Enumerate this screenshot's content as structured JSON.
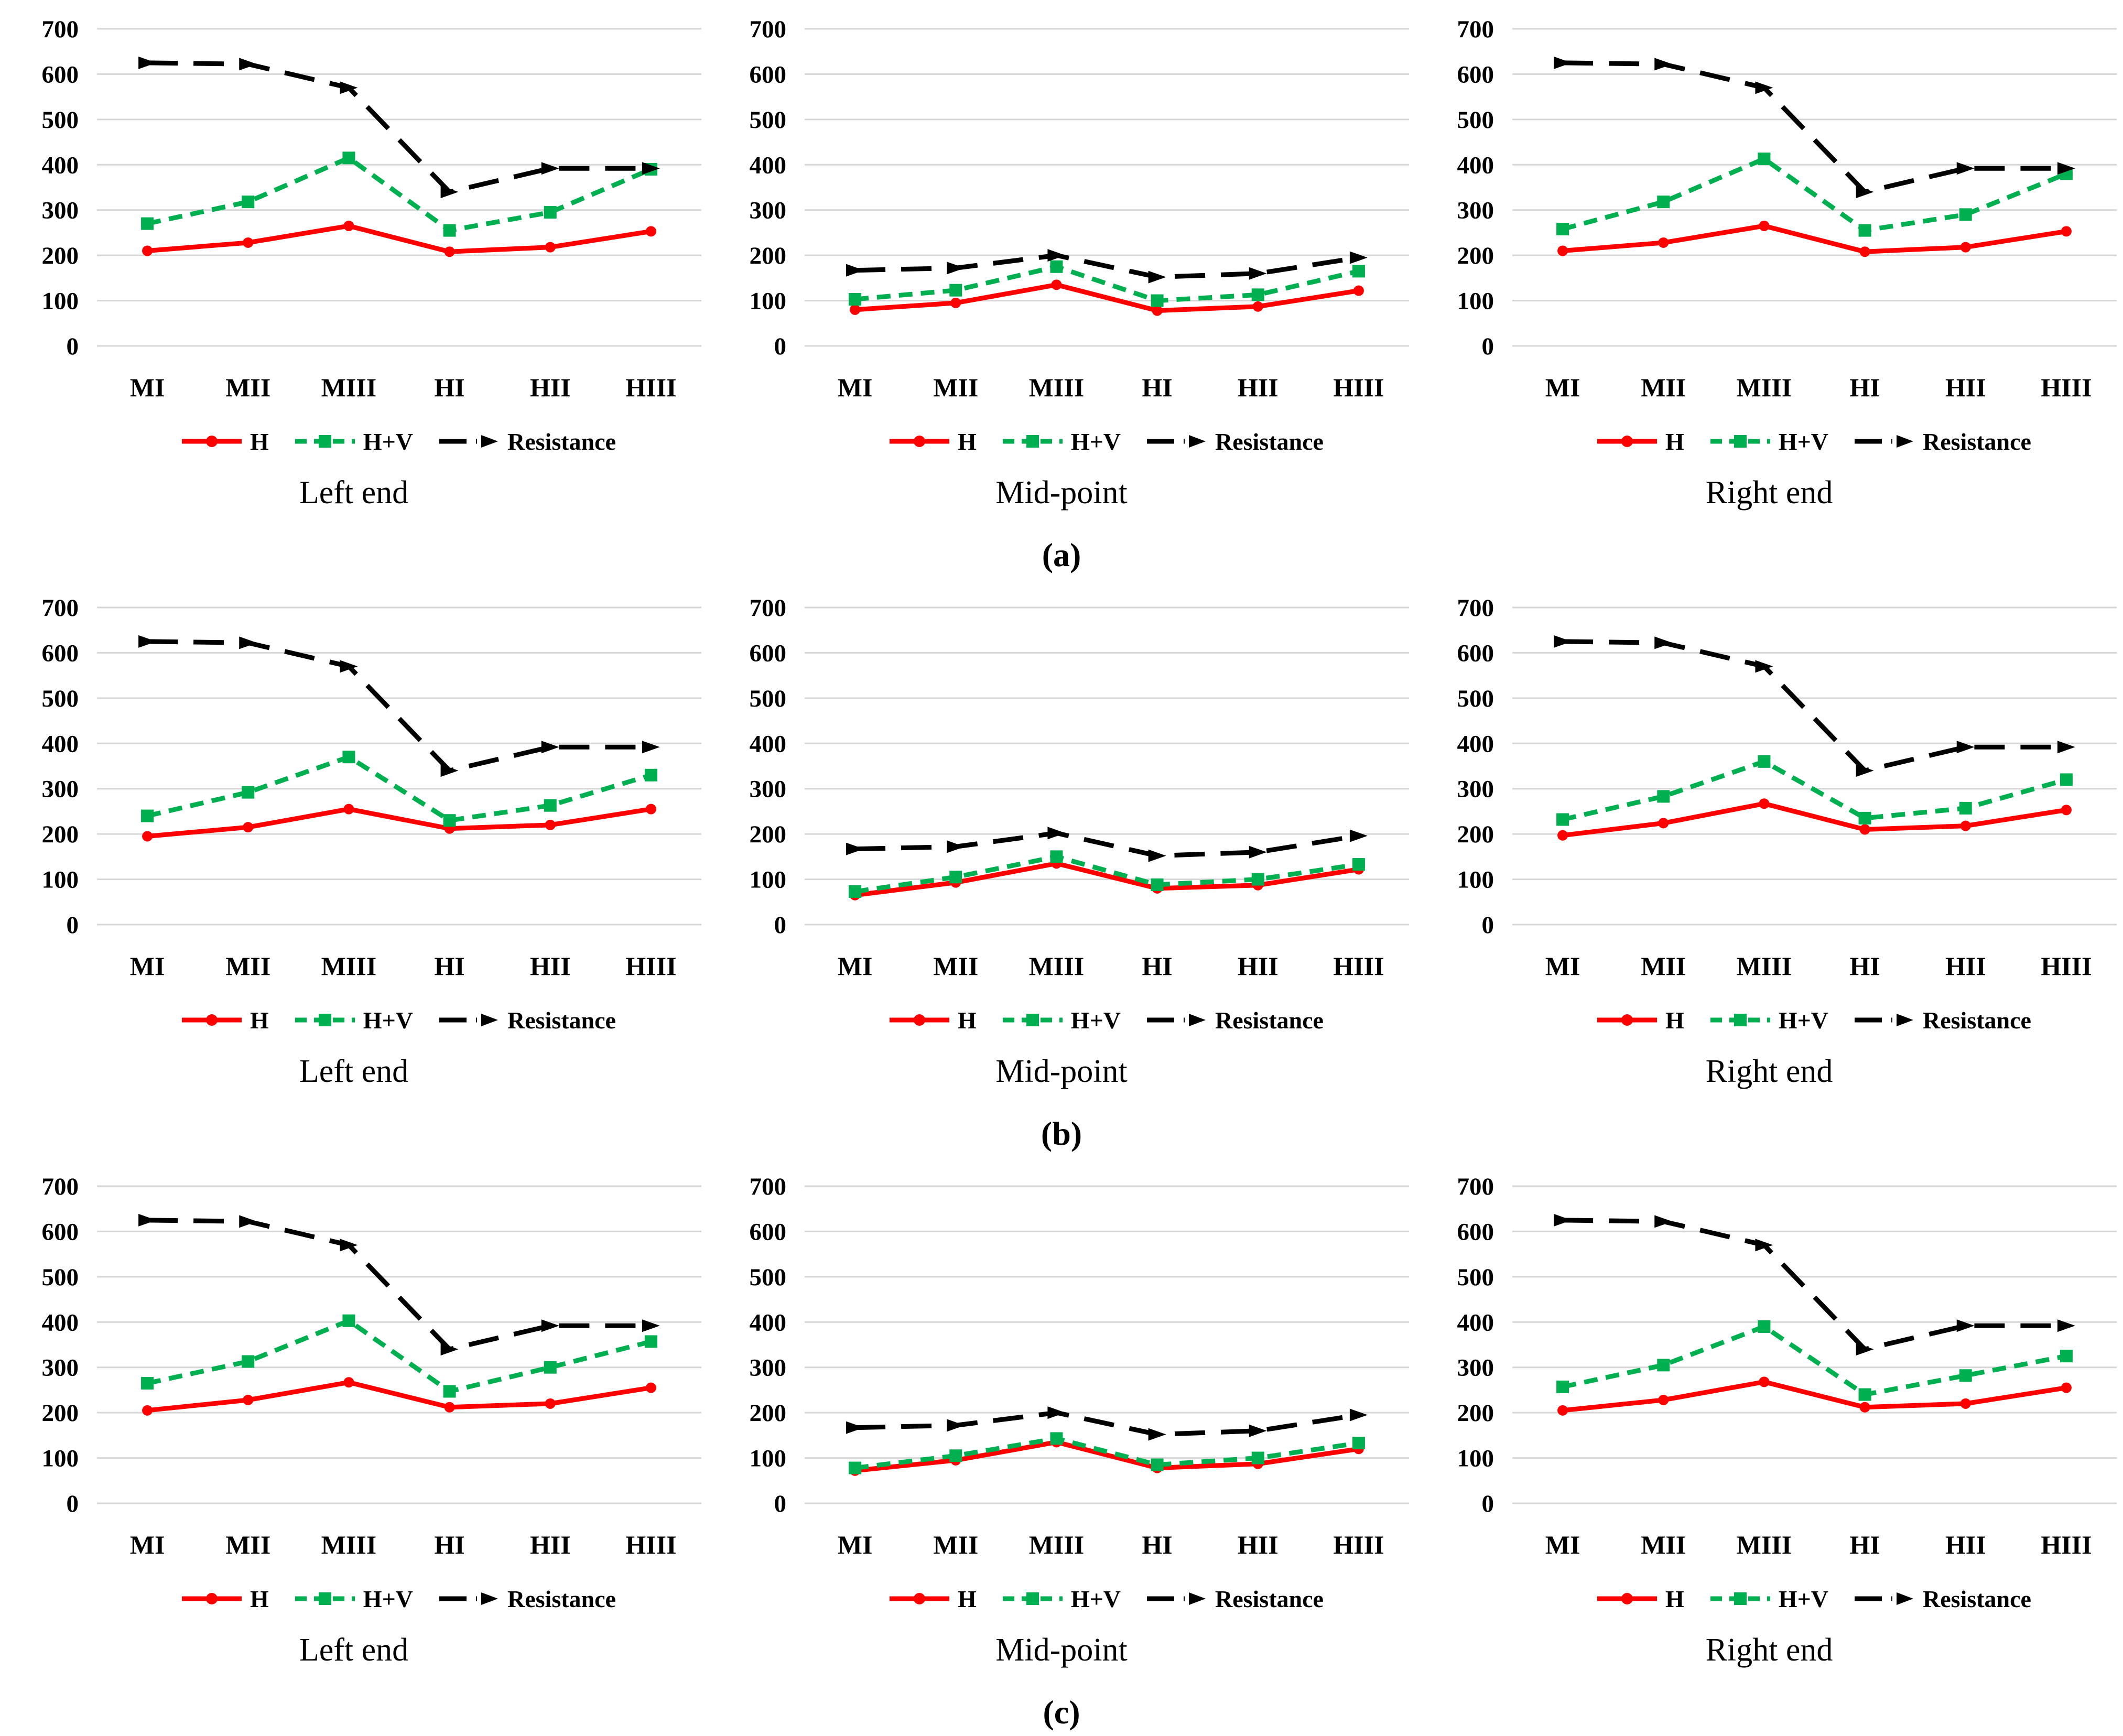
{
  "page": {
    "background": "#ffffff"
  },
  "chart_rows": [
    {
      "label": "(a)"
    },
    {
      "label": "(b)"
    },
    {
      "label": "(c)"
    }
  ],
  "chart_layout": {
    "ylim": [
      0,
      700
    ],
    "yticks": [
      0,
      100,
      200,
      300,
      400,
      500,
      600,
      700
    ],
    "grid": "horizontal",
    "gridline_color": "#d6d6d6",
    "legend_position": "bottom"
  },
  "chart_data": [
    {
      "type": "line",
      "panel": "(a)",
      "title": "Left end",
      "categories": [
        "MI",
        "MII",
        "MIII",
        "HI",
        "HII",
        "HIII"
      ],
      "ylim": [
        0,
        700
      ],
      "series": [
        {
          "name": "H",
          "color": "#ff0000",
          "line": "solid",
          "marker": "circle",
          "values": [
            210,
            228,
            265,
            208,
            218,
            253
          ]
        },
        {
          "name": "H+V",
          "color": "#00b050",
          "line": "dashed",
          "marker": "square",
          "values": [
            270,
            318,
            415,
            255,
            295,
            390
          ]
        },
        {
          "name": "Resistance",
          "color": "#000000",
          "line": "longdash",
          "marker": "triangle",
          "values": [
            625,
            622,
            570,
            340,
            392,
            392
          ]
        }
      ]
    },
    {
      "type": "line",
      "panel": "(a)",
      "title": "Mid-point",
      "categories": [
        "MI",
        "MII",
        "MIII",
        "HI",
        "HII",
        "HIII"
      ],
      "ylim": [
        0,
        700
      ],
      "series": [
        {
          "name": "H",
          "color": "#ff0000",
          "line": "solid",
          "marker": "circle",
          "values": [
            80,
            95,
            135,
            78,
            87,
            122
          ]
        },
        {
          "name": "H+V",
          "color": "#00b050",
          "line": "dashed",
          "marker": "square",
          "values": [
            103,
            123,
            175,
            100,
            113,
            165
          ]
        },
        {
          "name": "Resistance",
          "color": "#000000",
          "line": "longdash",
          "marker": "triangle",
          "values": [
            167,
            172,
            200,
            152,
            160,
            195
          ]
        }
      ]
    },
    {
      "type": "line",
      "panel": "(a)",
      "title": "Right end",
      "categories": [
        "MI",
        "MII",
        "MIII",
        "HI",
        "HII",
        "HIII"
      ],
      "ylim": [
        0,
        700
      ],
      "series": [
        {
          "name": "H",
          "color": "#ff0000",
          "line": "solid",
          "marker": "circle",
          "values": [
            210,
            228,
            265,
            208,
            218,
            253
          ]
        },
        {
          "name": "H+V",
          "color": "#00b050",
          "line": "dashed",
          "marker": "square",
          "values": [
            258,
            318,
            413,
            255,
            290,
            380
          ]
        },
        {
          "name": "Resistance",
          "color": "#000000",
          "line": "longdash",
          "marker": "triangle",
          "values": [
            625,
            622,
            570,
            340,
            392,
            392
          ]
        }
      ]
    },
    {
      "type": "line",
      "panel": "(b)",
      "title": "Left end",
      "categories": [
        "MI",
        "MII",
        "MIII",
        "HI",
        "HII",
        "HIII"
      ],
      "ylim": [
        0,
        700
      ],
      "series": [
        {
          "name": "H",
          "color": "#ff0000",
          "line": "solid",
          "marker": "circle",
          "values": [
            195,
            215,
            255,
            212,
            220,
            255
          ]
        },
        {
          "name": "H+V",
          "color": "#00b050",
          "line": "dashed",
          "marker": "square",
          "values": [
            240,
            292,
            370,
            230,
            263,
            330
          ]
        },
        {
          "name": "Resistance",
          "color": "#000000",
          "line": "longdash",
          "marker": "triangle",
          "values": [
            625,
            622,
            570,
            340,
            392,
            392
          ]
        }
      ]
    },
    {
      "type": "line",
      "panel": "(b)",
      "title": "Mid-point",
      "categories": [
        "MI",
        "MII",
        "MIII",
        "HI",
        "HII",
        "HIII"
      ],
      "ylim": [
        0,
        700
      ],
      "series": [
        {
          "name": "H",
          "color": "#ff0000",
          "line": "solid",
          "marker": "circle",
          "values": [
            65,
            93,
            135,
            80,
            87,
            122
          ]
        },
        {
          "name": "H+V",
          "color": "#00b050",
          "line": "dashed",
          "marker": "square",
          "values": [
            73,
            105,
            150,
            88,
            100,
            133
          ]
        },
        {
          "name": "Resistance",
          "color": "#000000",
          "line": "longdash",
          "marker": "triangle",
          "values": [
            167,
            172,
            202,
            152,
            160,
            196
          ]
        }
      ]
    },
    {
      "type": "line",
      "panel": "(b)",
      "title": "Right end",
      "categories": [
        "MI",
        "MII",
        "MIII",
        "HI",
        "HII",
        "HIII"
      ],
      "ylim": [
        0,
        700
      ],
      "series": [
        {
          "name": "H",
          "color": "#ff0000",
          "line": "solid",
          "marker": "circle",
          "values": [
            197,
            224,
            267,
            210,
            218,
            253
          ]
        },
        {
          "name": "H+V",
          "color": "#00b050",
          "line": "dashed",
          "marker": "square",
          "values": [
            232,
            283,
            360,
            235,
            257,
            320
          ]
        },
        {
          "name": "Resistance",
          "color": "#000000",
          "line": "longdash",
          "marker": "triangle",
          "values": [
            625,
            622,
            570,
            340,
            392,
            392
          ]
        }
      ]
    },
    {
      "type": "line",
      "panel": "(c)",
      "title": "Left end",
      "categories": [
        "MI",
        "MII",
        "MIII",
        "HI",
        "HII",
        "HIII"
      ],
      "ylim": [
        0,
        700
      ],
      "series": [
        {
          "name": "H",
          "color": "#ff0000",
          "line": "solid",
          "marker": "circle",
          "values": [
            205,
            228,
            267,
            212,
            220,
            255
          ]
        },
        {
          "name": "H+V",
          "color": "#00b050",
          "line": "dashed",
          "marker": "square",
          "values": [
            265,
            313,
            403,
            247,
            300,
            357
          ]
        },
        {
          "name": "Resistance",
          "color": "#000000",
          "line": "longdash",
          "marker": "triangle",
          "values": [
            625,
            622,
            570,
            340,
            392,
            392
          ]
        }
      ]
    },
    {
      "type": "line",
      "panel": "(c)",
      "title": "Mid-point",
      "categories": [
        "MI",
        "MII",
        "MIII",
        "HI",
        "HII",
        "HIII"
      ],
      "ylim": [
        0,
        700
      ],
      "series": [
        {
          "name": "H",
          "color": "#ff0000",
          "line": "solid",
          "marker": "circle",
          "values": [
            72,
            95,
            135,
            78,
            87,
            120
          ]
        },
        {
          "name": "H+V",
          "color": "#00b050",
          "line": "dashed",
          "marker": "square",
          "values": [
            78,
            105,
            143,
            85,
            100,
            133
          ]
        },
        {
          "name": "Resistance",
          "color": "#000000",
          "line": "longdash",
          "marker": "triangle",
          "values": [
            167,
            172,
            200,
            152,
            160,
            195
          ]
        }
      ]
    },
    {
      "type": "line",
      "panel": "(c)",
      "title": "Right end",
      "categories": [
        "MI",
        "MII",
        "MIII",
        "HI",
        "HII",
        "HIII"
      ],
      "ylim": [
        0,
        700
      ],
      "series": [
        {
          "name": "H",
          "color": "#ff0000",
          "line": "solid",
          "marker": "circle",
          "values": [
            205,
            228,
            268,
            212,
            220,
            255
          ]
        },
        {
          "name": "H+V",
          "color": "#00b050",
          "line": "dashed",
          "marker": "square",
          "values": [
            257,
            305,
            390,
            240,
            282,
            325
          ]
        },
        {
          "name": "Resistance",
          "color": "#000000",
          "line": "longdash",
          "marker": "triangle",
          "values": [
            625,
            622,
            570,
            340,
            392,
            392
          ]
        }
      ]
    }
  ]
}
